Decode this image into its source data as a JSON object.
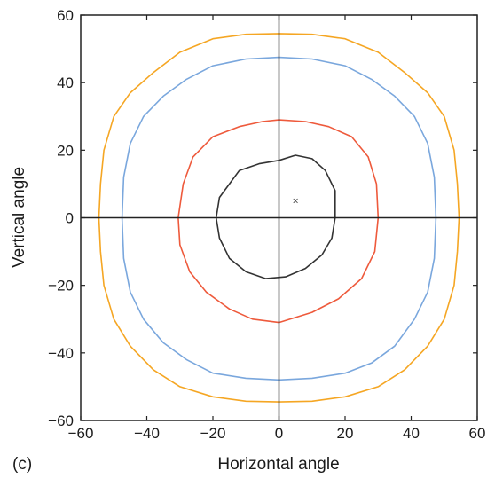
{
  "panel_label": "(c)",
  "chart_data": {
    "type": "line",
    "xlabel": "Horizontal angle",
    "ylabel": "Vertical angle",
    "xlim": [
      -60,
      60
    ],
    "ylim": [
      -60,
      60
    ],
    "xticks": [
      "−60",
      "−40",
      "−20",
      "0",
      "20",
      "40",
      "60"
    ],
    "yticks": [
      "60",
      "40",
      "20",
      "0",
      "−20",
      "−40",
      "−60"
    ],
    "grid": false,
    "crosshair": true,
    "fixation_marker": {
      "x": 5,
      "y": 5,
      "symbol": "×"
    },
    "series": [
      {
        "color": "#f5a623",
        "points": [
          [
            0,
            54.5
          ],
          [
            10,
            54.3
          ],
          [
            20,
            53
          ],
          [
            30,
            49
          ],
          [
            38,
            43
          ],
          [
            45,
            37
          ],
          [
            50,
            30
          ],
          [
            53,
            20
          ],
          [
            54,
            10
          ],
          [
            54.5,
            0
          ],
          [
            54,
            -10
          ],
          [
            53,
            -20
          ],
          [
            50,
            -30
          ],
          [
            45,
            -38
          ],
          [
            38,
            -45
          ],
          [
            30,
            -50
          ],
          [
            20,
            -53
          ],
          [
            10,
            -54.3
          ],
          [
            0,
            -54.5
          ],
          [
            -10,
            -54.3
          ],
          [
            -20,
            -53
          ],
          [
            -30,
            -50
          ],
          [
            -38,
            -45
          ],
          [
            -45,
            -38
          ],
          [
            -50,
            -30
          ],
          [
            -53,
            -20
          ],
          [
            -54,
            -10
          ],
          [
            -54.5,
            0
          ],
          [
            -54,
            10
          ],
          [
            -53,
            20
          ],
          [
            -50,
            30
          ],
          [
            -45,
            37
          ],
          [
            -38,
            43
          ],
          [
            -30,
            49
          ],
          [
            -20,
            53
          ],
          [
            -10,
            54.3
          ]
        ]
      },
      {
        "color": "#7aa7dd",
        "points": [
          [
            0,
            47.5
          ],
          [
            10,
            47
          ],
          [
            20,
            45
          ],
          [
            28,
            41
          ],
          [
            35,
            36
          ],
          [
            41,
            30
          ],
          [
            45,
            22
          ],
          [
            47,
            12
          ],
          [
            47.5,
            0
          ],
          [
            47,
            -12
          ],
          [
            45,
            -22
          ],
          [
            41,
            -30
          ],
          [
            35,
            -38
          ],
          [
            28,
            -43
          ],
          [
            20,
            -46
          ],
          [
            10,
            -47.5
          ],
          [
            0,
            -48
          ],
          [
            -10,
            -47.5
          ],
          [
            -20,
            -46
          ],
          [
            -28,
            -42
          ],
          [
            -35,
            -37
          ],
          [
            -41,
            -30
          ],
          [
            -45,
            -22
          ],
          [
            -47,
            -12
          ],
          [
            -47.5,
            0
          ],
          [
            -47,
            12
          ],
          [
            -45,
            22
          ],
          [
            -41,
            30
          ],
          [
            -35,
            36
          ],
          [
            -28,
            41
          ],
          [
            -20,
            45
          ],
          [
            -10,
            47
          ]
        ]
      },
      {
        "color": "#ee5a3c",
        "points": [
          [
            0,
            29
          ],
          [
            8,
            28.5
          ],
          [
            15,
            27
          ],
          [
            22,
            24
          ],
          [
            27,
            18
          ],
          [
            29.5,
            10
          ],
          [
            30,
            0
          ],
          [
            29,
            -10
          ],
          [
            25,
            -18
          ],
          [
            18,
            -24
          ],
          [
            10,
            -28
          ],
          [
            0,
            -31
          ],
          [
            -8,
            -30
          ],
          [
            -15,
            -27
          ],
          [
            -22,
            -22
          ],
          [
            -27,
            -16
          ],
          [
            -30,
            -8
          ],
          [
            -30.5,
            0
          ],
          [
            -29,
            10
          ],
          [
            -26,
            18
          ],
          [
            -20,
            24
          ],
          [
            -12,
            27
          ],
          [
            -5,
            28.5
          ]
        ]
      },
      {
        "color": "#333333",
        "points": [
          [
            0,
            17
          ],
          [
            5,
            18.5
          ],
          [
            10,
            17.5
          ],
          [
            14,
            14
          ],
          [
            17,
            8
          ],
          [
            17,
            0
          ],
          [
            16,
            -6
          ],
          [
            13,
            -11
          ],
          [
            8,
            -15
          ],
          [
            2,
            -17.5
          ],
          [
            -4,
            -18
          ],
          [
            -10,
            -16
          ],
          [
            -15,
            -12
          ],
          [
            -18,
            -6
          ],
          [
            -19,
            0
          ],
          [
            -18,
            6
          ],
          [
            -15,
            10
          ],
          [
            -12,
            14
          ],
          [
            -6,
            16
          ]
        ]
      }
    ]
  }
}
